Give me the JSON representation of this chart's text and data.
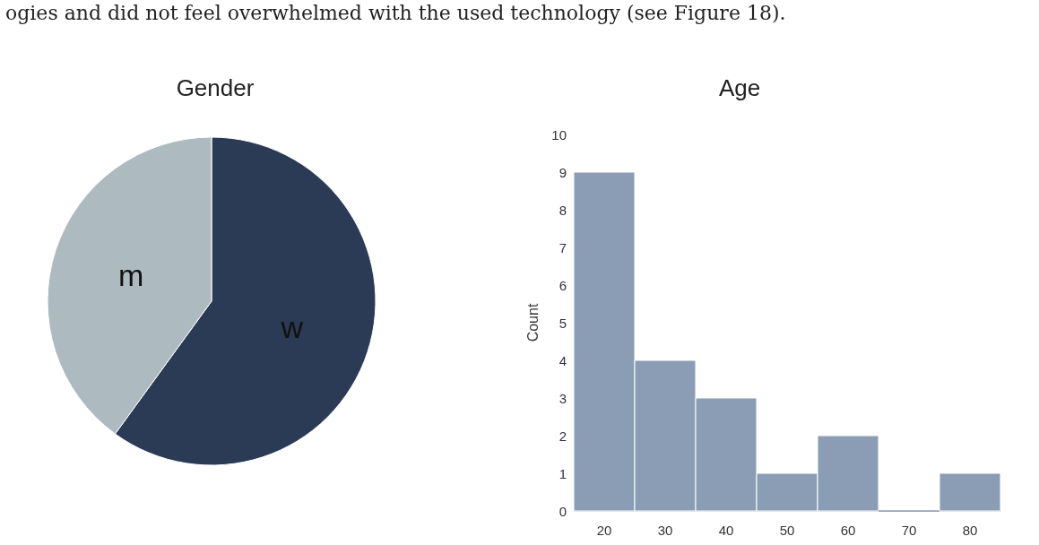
{
  "chart_data": [
    {
      "type": "pie",
      "title": "Gender",
      "categories": [
        "w",
        "m"
      ],
      "values": [
        60,
        40
      ],
      "colors": [
        "#2b3a55",
        "#adbbc1"
      ],
      "annotations": [
        "ogies and did not feel overwhelmed with the used technology (see Figure 18)."
      ]
    },
    {
      "type": "histogram",
      "title": "Age",
      "ylabel": "Count",
      "bins": [
        15,
        25,
        35,
        45,
        55,
        65,
        75,
        85
      ],
      "values": [
        9,
        4,
        3,
        1,
        2,
        0,
        1
      ],
      "color": "#8a9db5",
      "xlim": [
        15,
        85
      ],
      "xticks": [
        20,
        30,
        40,
        50,
        60,
        70,
        80
      ],
      "ylim": [
        0,
        10
      ],
      "yticks": [
        0,
        1,
        2,
        3,
        4,
        5,
        6,
        7,
        8,
        9,
        10
      ]
    }
  ]
}
